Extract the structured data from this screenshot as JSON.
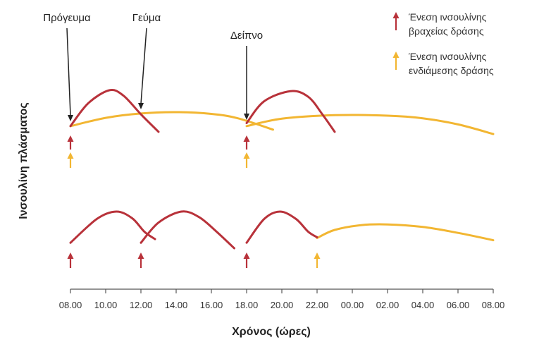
{
  "chart_data": {
    "type": "line",
    "xlabel": "Χρόνος (ώρες)",
    "ylabel": "Ινσουλίνη πλάσματος",
    "x_tick_labels": [
      "08.00",
      "10.00",
      "12.00",
      "14.00",
      "16.00",
      "18.00",
      "20.00",
      "22.00",
      "00.00",
      "02.00",
      "04.00",
      "06.00",
      "08.00"
    ],
    "x_range_hours": [
      8,
      32
    ],
    "meals": [
      {
        "label": "Πρόγευμα",
        "time": 8
      },
      {
        "label": "Γεύμα",
        "time": 12
      },
      {
        "label": "Δείπνο",
        "time": 18
      }
    ],
    "legend": [
      {
        "label_line1": "Ένεση ινσουλίνης",
        "label_line2": "βραχείας δράσης",
        "color": "#b8323a"
      },
      {
        "label_line1": "Ένεση ινσουλίνης",
        "label_line2": "ενδιάμεσης δράσης",
        "color": "#f2b632"
      }
    ],
    "colors": {
      "short_acting": "#b8323a",
      "intermediate_acting": "#f2b632",
      "axis": "#555555"
    },
    "panels": [
      {
        "short_acting_injections": [
          8,
          18
        ],
        "intermediate_acting_injections": [
          8,
          18
        ],
        "short_acting_curves": [
          {
            "x": [
              8,
              9,
              10.2,
              11,
              12,
              13
            ],
            "y": [
              0.18,
              0.7,
              1.0,
              0.88,
              0.45,
              0.05
            ]
          },
          {
            "x": [
              18,
              19,
              20.5,
              21.5,
              22.3,
              23
            ],
            "y": [
              0.25,
              0.75,
              0.98,
              0.85,
              0.45,
              0.05
            ]
          }
        ],
        "intermediate_acting_curves": [
          {
            "x": [
              8,
              10,
              12,
              14,
              16,
              17.5,
              19.5
            ],
            "y": [
              0.18,
              0.37,
              0.47,
              0.5,
              0.46,
              0.36,
              0.1
            ]
          },
          {
            "x": [
              18,
              20,
              23,
              26,
              28,
              30,
              32
            ],
            "y": [
              0.18,
              0.35,
              0.43,
              0.42,
              0.36,
              0.22,
              0.0
            ]
          }
        ]
      },
      {
        "short_acting_injections": [
          8,
          12,
          18
        ],
        "intermediate_acting_injections": [
          22
        ],
        "short_acting_curves": [
          {
            "x": [
              8,
              9.5,
              10.6,
              11.5,
              12.2,
              12.8
            ],
            "y": [
              0.15,
              0.8,
              1.0,
              0.82,
              0.45,
              0.25
            ]
          },
          {
            "x": [
              12,
              13,
              14.3,
              15.3,
              16.3,
              17.3
            ],
            "y": [
              0.15,
              0.7,
              1.0,
              0.85,
              0.45,
              0.0
            ]
          },
          {
            "x": [
              18,
              19,
              19.9,
              20.8,
              21.5,
              22
            ],
            "y": [
              0.15,
              0.8,
              1.0,
              0.8,
              0.45,
              0.3
            ]
          }
        ],
        "intermediate_acting_curves": [
          {
            "x": [
              22,
              23,
              24.5,
              26,
              28,
              30,
              32
            ],
            "y": [
              0.28,
              0.5,
              0.63,
              0.65,
              0.58,
              0.42,
              0.22
            ]
          }
        ]
      }
    ]
  }
}
